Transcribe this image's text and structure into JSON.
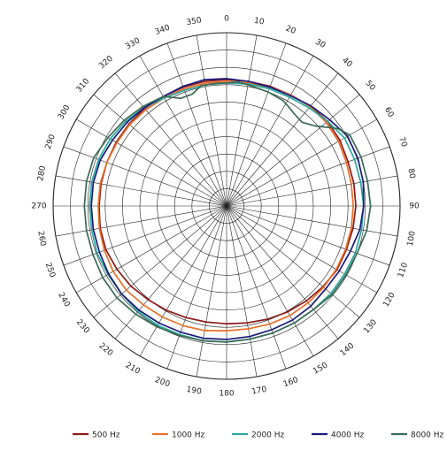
{
  "chart_data": {
    "type": "polar",
    "angle_ticks": [
      "0",
      "10",
      "20",
      "30",
      "40",
      "50",
      "60",
      "70",
      "80",
      "90",
      "100",
      "110",
      "120",
      "130",
      "140",
      "150",
      "160",
      "170",
      "180",
      "190",
      "200",
      "210",
      "220",
      "230",
      "240",
      "250",
      "260",
      "270",
      "280",
      "290",
      "300",
      "310",
      "320",
      "330",
      "340",
      "350"
    ],
    "radial_rings": 10,
    "radial_max": 10,
    "grid": true,
    "legend_position": "bottom",
    "series": [
      {
        "name": "500 Hz",
        "color": "#8b1a1a",
        "points": [
          [
            0,
            7.3
          ],
          [
            10,
            7.3
          ],
          [
            20,
            7.35
          ],
          [
            30,
            7.4
          ],
          [
            40,
            7.5
          ],
          [
            50,
            7.6
          ],
          [
            60,
            7.55
          ],
          [
            70,
            7.45
          ],
          [
            80,
            7.45
          ],
          [
            90,
            7.45
          ],
          [
            100,
            7.4
          ],
          [
            110,
            7.35
          ],
          [
            120,
            7.35
          ],
          [
            130,
            7.25
          ],
          [
            140,
            7.15
          ],
          [
            150,
            7.05
          ],
          [
            160,
            6.95
          ],
          [
            170,
            6.85
          ],
          [
            180,
            6.8
          ],
          [
            190,
            6.8
          ],
          [
            200,
            6.85
          ],
          [
            210,
            6.95
          ],
          [
            220,
            7.05
          ],
          [
            230,
            7.2
          ],
          [
            240,
            7.3
          ],
          [
            250,
            7.4
          ],
          [
            260,
            7.4
          ],
          [
            270,
            7.35
          ],
          [
            280,
            7.35
          ],
          [
            290,
            7.35
          ],
          [
            300,
            7.35
          ],
          [
            310,
            7.35
          ],
          [
            320,
            7.35
          ],
          [
            330,
            7.3
          ],
          [
            340,
            7.3
          ],
          [
            350,
            7.3
          ],
          [
            360,
            7.3
          ]
        ]
      },
      {
        "name": "1000 Hz",
        "color": "#e8712a",
        "points": [
          [
            0,
            7.2
          ],
          [
            10,
            7.2
          ],
          [
            20,
            7.3
          ],
          [
            30,
            7.4
          ],
          [
            40,
            7.5
          ],
          [
            50,
            7.5
          ],
          [
            60,
            7.45
          ],
          [
            70,
            7.35
          ],
          [
            80,
            7.3
          ],
          [
            90,
            7.3
          ],
          [
            100,
            7.3
          ],
          [
            110,
            7.3
          ],
          [
            120,
            7.3
          ],
          [
            130,
            7.3
          ],
          [
            140,
            7.3
          ],
          [
            150,
            7.3
          ],
          [
            160,
            7.25
          ],
          [
            170,
            7.2
          ],
          [
            180,
            7.2
          ],
          [
            190,
            7.3
          ],
          [
            200,
            7.35
          ],
          [
            210,
            7.4
          ],
          [
            220,
            7.45
          ],
          [
            230,
            7.55
          ],
          [
            240,
            7.55
          ],
          [
            250,
            7.5
          ],
          [
            260,
            7.45
          ],
          [
            270,
            7.4
          ],
          [
            280,
            7.4
          ],
          [
            290,
            7.35
          ],
          [
            300,
            7.3
          ],
          [
            310,
            7.3
          ],
          [
            320,
            7.25
          ],
          [
            330,
            7.2
          ],
          [
            340,
            7.2
          ],
          [
            350,
            7.2
          ],
          [
            360,
            7.2
          ]
        ]
      },
      {
        "name": "2000 Hz",
        "color": "#2aa7a0",
        "points": [
          [
            0,
            7.1
          ],
          [
            10,
            7.15
          ],
          [
            20,
            7.2
          ],
          [
            30,
            7.25
          ],
          [
            40,
            7.4
          ],
          [
            50,
            7.6
          ],
          [
            60,
            7.85
          ],
          [
            70,
            7.85
          ],
          [
            80,
            7.85
          ],
          [
            90,
            7.9
          ],
          [
            100,
            7.9
          ],
          [
            110,
            7.9
          ],
          [
            120,
            7.85
          ],
          [
            130,
            7.85
          ],
          [
            140,
            7.8
          ],
          [
            150,
            7.8
          ],
          [
            160,
            7.8
          ],
          [
            170,
            7.8
          ],
          [
            180,
            7.85
          ],
          [
            190,
            7.9
          ],
          [
            200,
            7.9
          ],
          [
            210,
            7.95
          ],
          [
            220,
            7.95
          ],
          [
            230,
            7.9
          ],
          [
            240,
            7.9
          ],
          [
            250,
            7.95
          ],
          [
            260,
            7.9
          ],
          [
            270,
            7.9
          ],
          [
            280,
            7.9
          ],
          [
            290,
            7.85
          ],
          [
            300,
            7.75
          ],
          [
            310,
            7.6
          ],
          [
            320,
            7.4
          ],
          [
            330,
            7.2
          ],
          [
            340,
            7.1
          ],
          [
            350,
            7.1
          ],
          [
            360,
            7.1
          ]
        ]
      },
      {
        "name": "4000 Hz",
        "color": "#1a1a7a",
        "points": [
          [
            0,
            7.35
          ],
          [
            10,
            7.3
          ],
          [
            20,
            7.3
          ],
          [
            30,
            7.35
          ],
          [
            40,
            7.55
          ],
          [
            50,
            7.75
          ],
          [
            60,
            8.05
          ],
          [
            70,
            8.05
          ],
          [
            80,
            8.0
          ],
          [
            90,
            7.9
          ],
          [
            100,
            7.8
          ],
          [
            110,
            7.6
          ],
          [
            120,
            7.5
          ],
          [
            130,
            7.45
          ],
          [
            140,
            7.55
          ],
          [
            150,
            7.6
          ],
          [
            160,
            7.6
          ],
          [
            170,
            7.65
          ],
          [
            180,
            7.7
          ],
          [
            190,
            7.75
          ],
          [
            200,
            7.75
          ],
          [
            210,
            7.8
          ],
          [
            220,
            7.85
          ],
          [
            230,
            7.9
          ],
          [
            240,
            7.85
          ],
          [
            250,
            7.8
          ],
          [
            260,
            7.8
          ],
          [
            270,
            7.8
          ],
          [
            280,
            7.8
          ],
          [
            290,
            7.75
          ],
          [
            300,
            7.6
          ],
          [
            310,
            7.5
          ],
          [
            320,
            7.4
          ],
          [
            330,
            7.3
          ],
          [
            340,
            7.35
          ],
          [
            350,
            7.4
          ],
          [
            360,
            7.35
          ]
        ]
      },
      {
        "name": "8000 Hz",
        "color": "#3a6a55",
        "points": [
          [
            0,
            7.1
          ],
          [
            5,
            7.2
          ],
          [
            10,
            7.1
          ],
          [
            20,
            7.0
          ],
          [
            28,
            6.9
          ],
          [
            32,
            6.75
          ],
          [
            36,
            6.6
          ],
          [
            42,
            6.5
          ],
          [
            48,
            6.9
          ],
          [
            55,
            7.8
          ],
          [
            60,
            8.2
          ],
          [
            70,
            8.25
          ],
          [
            80,
            8.25
          ],
          [
            90,
            8.3
          ],
          [
            100,
            8.2
          ],
          [
            110,
            8.0
          ],
          [
            120,
            7.95
          ],
          [
            130,
            7.95
          ],
          [
            140,
            7.8
          ],
          [
            150,
            7.8
          ],
          [
            160,
            7.8
          ],
          [
            170,
            7.8
          ],
          [
            180,
            7.85
          ],
          [
            190,
            7.9
          ],
          [
            200,
            7.95
          ],
          [
            210,
            8.05
          ],
          [
            220,
            8.15
          ],
          [
            230,
            8.25
          ],
          [
            240,
            8.25
          ],
          [
            250,
            8.2
          ],
          [
            260,
            8.2
          ],
          [
            270,
            8.2
          ],
          [
            280,
            8.2
          ],
          [
            290,
            8.15
          ],
          [
            300,
            7.9
          ],
          [
            310,
            7.7
          ],
          [
            320,
            7.5
          ],
          [
            330,
            7.3
          ],
          [
            337,
            6.75
          ],
          [
            343,
            6.75
          ],
          [
            348,
            7.1
          ],
          [
            355,
            7.1
          ],
          [
            360,
            7.1
          ]
        ]
      }
    ]
  }
}
